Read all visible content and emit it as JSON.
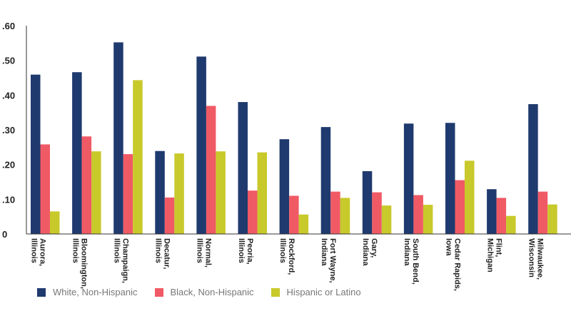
{
  "chart_data": {
    "type": "bar",
    "title": "",
    "xlabel": "",
    "ylabel": "",
    "ylim": [
      0,
      0.6
    ],
    "yticks": [
      0,
      0.1,
      0.2,
      0.3,
      0.4,
      0.5,
      0.6
    ],
    "ytick_labels": [
      "0",
      ".10",
      ".20",
      ".30",
      ".40",
      ".50",
      ".60"
    ],
    "grid": false,
    "legend_position": "bottom-left",
    "categories": [
      [
        "Aurora,",
        "Illinois"
      ],
      [
        "Bloomington,",
        "Illinois"
      ],
      [
        "Champaign,",
        "Illinois"
      ],
      [
        "Decatur,",
        "Illinois"
      ],
      [
        "Normal,",
        "Illinois"
      ],
      [
        "Peoria,",
        "Illinois"
      ],
      [
        "Rockford,",
        "Illinois"
      ],
      [
        "Fort Wayne,",
        "Indiana"
      ],
      [
        "Gary,",
        "Indiana"
      ],
      [
        "South Bend,",
        "Indiana"
      ],
      [
        "Cedar Rapids,",
        "Iowa"
      ],
      [
        "Flint,",
        "Michigan"
      ],
      [
        "Milwaukee,",
        "Wisconsin"
      ]
    ],
    "series": [
      {
        "name": "White, Non-Hispanic",
        "color": "#1f3a6e",
        "values": [
          0.459,
          0.466,
          0.552,
          0.239,
          0.511,
          0.38,
          0.273,
          0.308,
          0.181,
          0.318,
          0.32,
          0.129,
          0.374
        ]
      },
      {
        "name": "Black, Non-Hispanic",
        "color": "#f05a65",
        "values": [
          0.258,
          0.281,
          0.23,
          0.105,
          0.369,
          0.125,
          0.11,
          0.122,
          0.12,
          0.112,
          0.155,
          0.104,
          0.122
        ]
      },
      {
        "name": "Hispanic or Latino",
        "color": "#c8c92a",
        "values": [
          0.065,
          0.238,
          0.443,
          0.232,
          0.238,
          0.235,
          0.056,
          0.104,
          0.082,
          0.084,
          0.211,
          0.052,
          0.085
        ]
      }
    ]
  }
}
